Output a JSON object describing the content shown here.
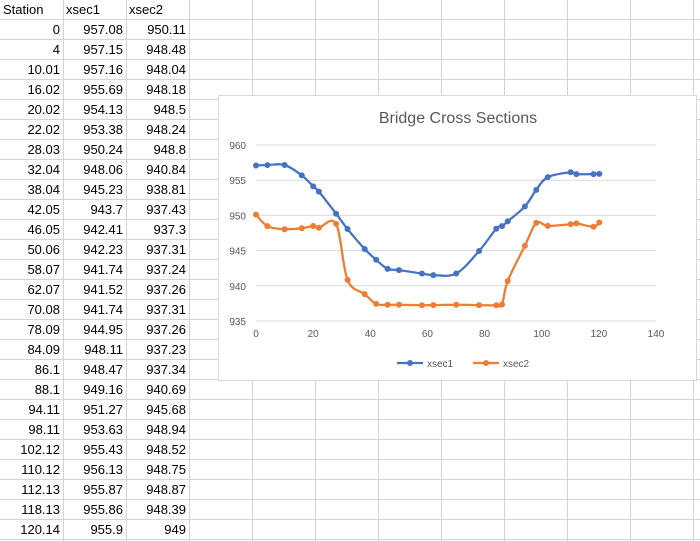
{
  "sheet": {
    "headers": [
      "Station",
      "xsec1",
      "xsec2"
    ],
    "rows": [
      [
        "0",
        "957.08",
        "950.11"
      ],
      [
        "4",
        "957.15",
        "948.48"
      ],
      [
        "10.01",
        "957.16",
        "948.04"
      ],
      [
        "16.02",
        "955.69",
        "948.18"
      ],
      [
        "20.02",
        "954.13",
        "948.5"
      ],
      [
        "22.02",
        "953.38",
        "948.24"
      ],
      [
        "28.03",
        "950.24",
        "948.8"
      ],
      [
        "32.04",
        "948.06",
        "940.84"
      ],
      [
        "38.04",
        "945.23",
        "938.81"
      ],
      [
        "42.05",
        "943.7",
        "937.43"
      ],
      [
        "46.05",
        "942.41",
        "937.3"
      ],
      [
        "50.06",
        "942.23",
        "937.31"
      ],
      [
        "58.07",
        "941.74",
        "937.24"
      ],
      [
        "62.07",
        "941.52",
        "937.26"
      ],
      [
        "70.08",
        "941.74",
        "937.31"
      ],
      [
        "78.09",
        "944.95",
        "937.26"
      ],
      [
        "84.09",
        "948.11",
        "937.23"
      ],
      [
        "86.1",
        "948.47",
        "937.34"
      ],
      [
        "88.1",
        "949.16",
        "940.69"
      ],
      [
        "94.11",
        "951.27",
        "945.68"
      ],
      [
        "98.11",
        "953.63",
        "948.94"
      ],
      [
        "102.12",
        "955.43",
        "948.52"
      ],
      [
        "110.12",
        "956.13",
        "948.75"
      ],
      [
        "112.13",
        "955.87",
        "948.87"
      ],
      [
        "118.13",
        "955.86",
        "948.39"
      ],
      [
        "120.14",
        "955.9",
        "949"
      ]
    ]
  },
  "chart_data": {
    "type": "line",
    "title": "Bridge Cross Sections",
    "xlabel": "",
    "ylabel": "",
    "xlim": [
      0,
      140
    ],
    "ylim": [
      935,
      960
    ],
    "xticks": [
      0,
      20,
      40,
      60,
      80,
      100,
      120,
      140
    ],
    "yticks": [
      935,
      940,
      945,
      950,
      955,
      960
    ],
    "grid": true,
    "smooth": true,
    "legend": "bottom",
    "x": [
      0,
      4,
      10.01,
      16.02,
      20.02,
      22.02,
      28.03,
      32.04,
      38.04,
      42.05,
      46.05,
      50.06,
      58.07,
      62.07,
      70.08,
      78.09,
      84.09,
      86.1,
      88.1,
      94.11,
      98.11,
      102.12,
      110.12,
      112.13,
      118.13,
      120.14
    ],
    "series": [
      {
        "name": "xsec1",
        "color": "#4472C4",
        "values": [
          957.08,
          957.15,
          957.16,
          955.69,
          954.13,
          953.38,
          950.24,
          948.06,
          945.23,
          943.7,
          942.41,
          942.23,
          941.74,
          941.52,
          941.74,
          944.95,
          948.11,
          948.47,
          949.16,
          951.27,
          953.63,
          955.43,
          956.13,
          955.87,
          955.86,
          955.9
        ]
      },
      {
        "name": "xsec2",
        "color": "#ED7D31",
        "values": [
          950.11,
          948.48,
          948.04,
          948.18,
          948.5,
          948.24,
          948.8,
          940.84,
          938.81,
          937.43,
          937.3,
          937.31,
          937.24,
          937.26,
          937.31,
          937.26,
          937.23,
          937.34,
          940.69,
          945.68,
          948.94,
          948.52,
          948.75,
          948.87,
          948.39,
          949
        ]
      }
    ]
  }
}
